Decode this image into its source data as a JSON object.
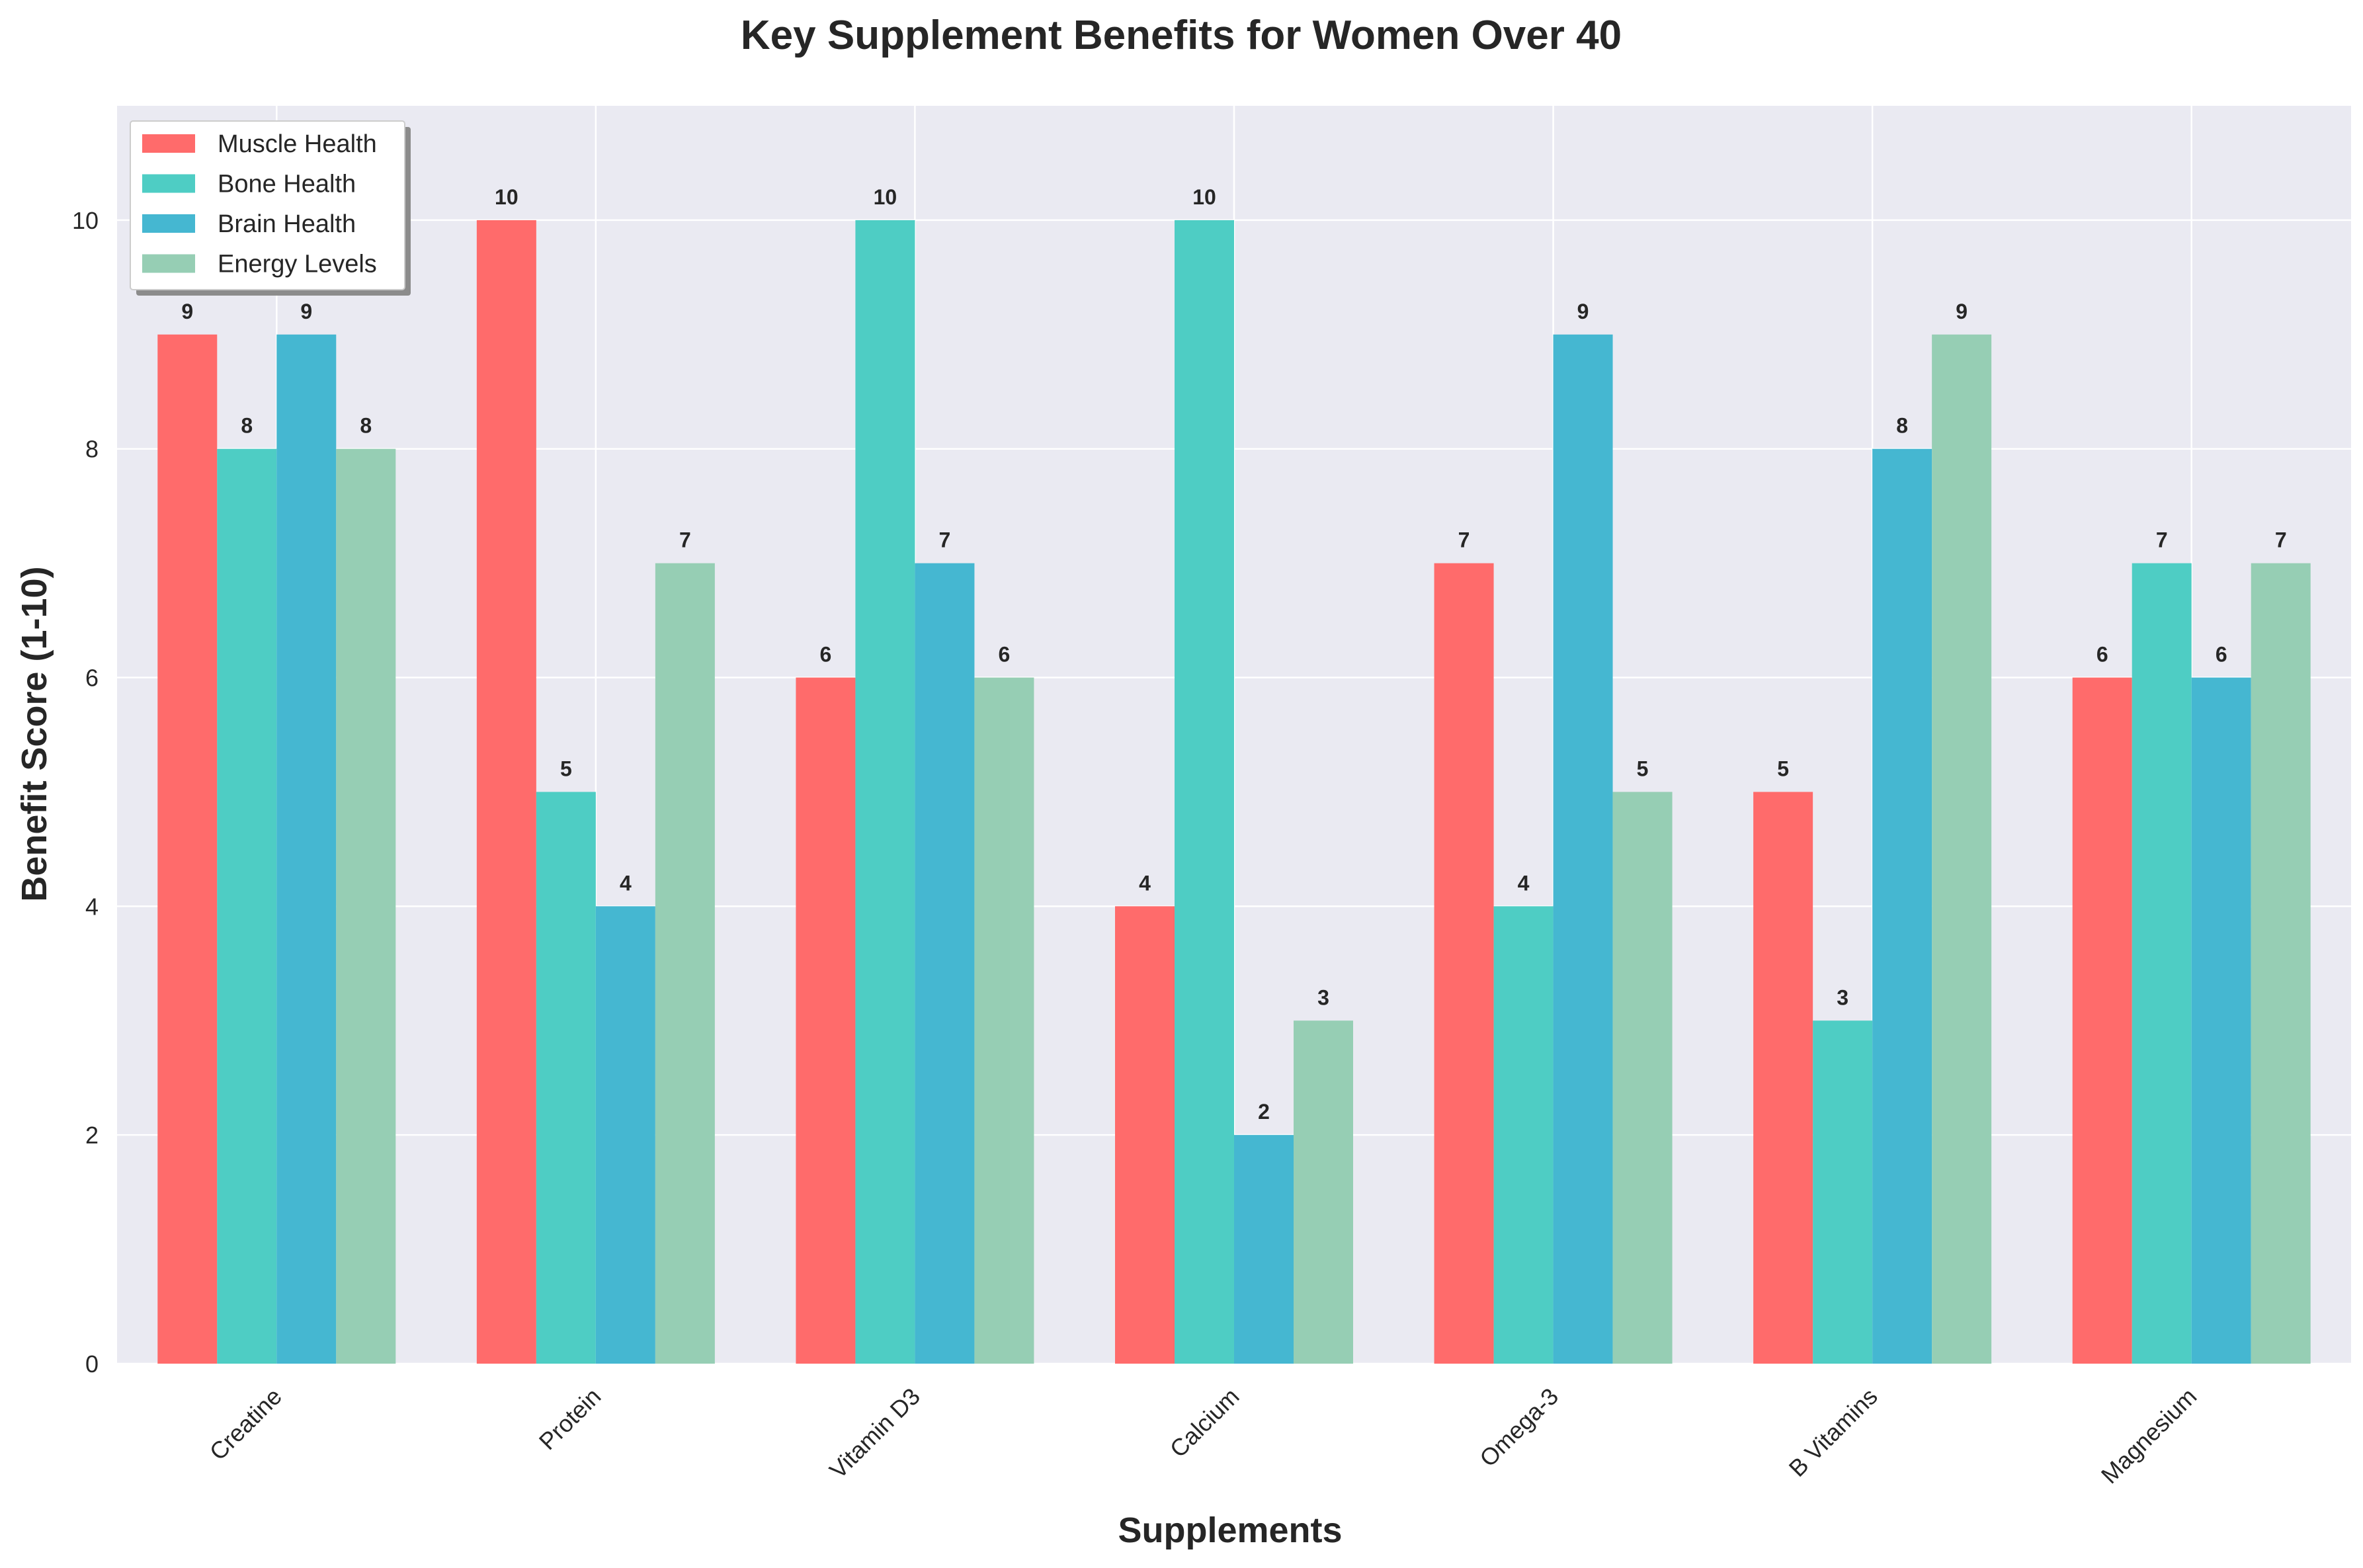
{
  "chart_data": {
    "type": "bar",
    "title": "Key Supplement Benefits for Women Over 40",
    "xlabel": "Supplements",
    "ylabel": "Benefit Score (1-10)",
    "ylim": [
      0,
      11
    ],
    "yticks": [
      0,
      2,
      4,
      6,
      8,
      10
    ],
    "grid": true,
    "legend_position": "top-left",
    "categories": [
      "Creatine",
      "Protein",
      "Vitamin D3",
      "Calcium",
      "Omega-3",
      "B Vitamins",
      "Magnesium"
    ],
    "series": [
      {
        "name": "Muscle Health",
        "color": "#FF6B6B",
        "values": [
          9,
          10,
          6,
          4,
          7,
          5,
          6
        ]
      },
      {
        "name": "Bone Health",
        "color": "#4ECDC4",
        "values": [
          8,
          5,
          10,
          10,
          4,
          3,
          7
        ]
      },
      {
        "name": "Brain Health",
        "color": "#45B7D1",
        "values": [
          9,
          4,
          7,
          2,
          9,
          8,
          6
        ]
      },
      {
        "name": "Energy Levels",
        "color": "#96CEB4",
        "values": [
          8,
          7,
          6,
          3,
          5,
          9,
          7
        ]
      }
    ]
  },
  "colors": {
    "plot_background": "#EAEAF2",
    "grid": "#FFFFFF",
    "text": "#262626"
  }
}
